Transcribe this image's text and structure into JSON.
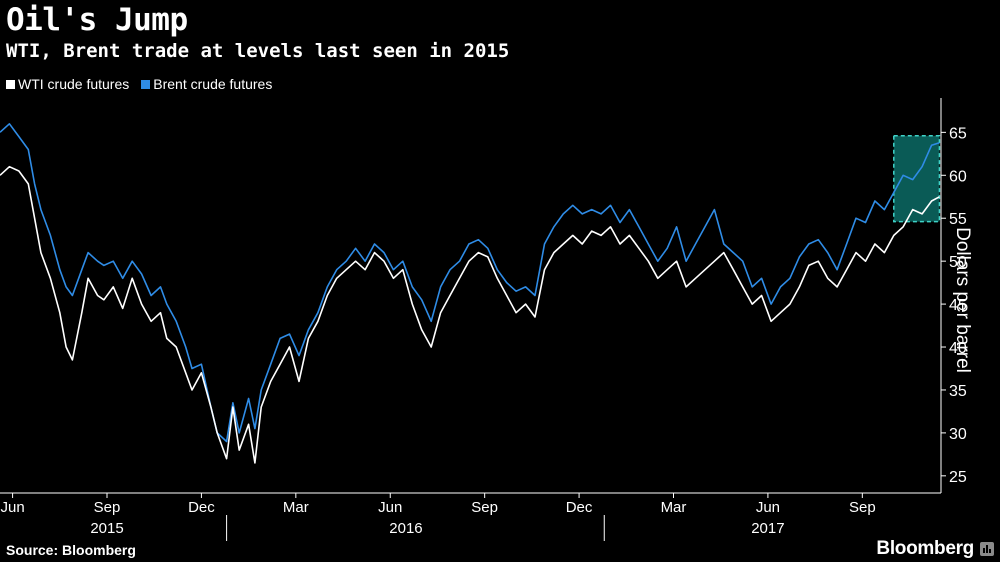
{
  "header": {
    "title": "Oil's Jump",
    "subtitle": "WTI, Brent trade at levels last seen in 2015"
  },
  "legend": [
    {
      "label": "WTI crude futures",
      "color": "#ffffff"
    },
    {
      "label": "Brent crude futures",
      "color": "#2f8ce6"
    }
  ],
  "footer": {
    "source": "Source: Bloomberg",
    "brand": "Bloomberg"
  },
  "colors": {
    "background": "#000000",
    "wti": "#ffffff",
    "brent": "#2f8ce6",
    "highlight_fill": "#0a5b56",
    "highlight_border": "#3fd3c8",
    "axis": "#ffffff"
  },
  "chart_data": {
    "type": "line",
    "title": "Oil's Jump",
    "subtitle": "WTI, Brent trade at levels last seen in 2015",
    "ylabel": "Dollars per barrel",
    "ylim": [
      23,
      69
    ],
    "yticks": [
      25,
      30,
      35,
      40,
      45,
      50,
      55,
      60,
      65
    ],
    "x_unit": "months since 2015-05-21 (approx.)",
    "xlim": [
      0,
      29.9
    ],
    "month_ticks": [
      {
        "label": "Jun",
        "x": 0.4
      },
      {
        "label": "Sep",
        "x": 3.4
      },
      {
        "label": "Dec",
        "x": 6.4
      },
      {
        "label": "Mar",
        "x": 9.4
      },
      {
        "label": "Jun",
        "x": 12.4
      },
      {
        "label": "Sep",
        "x": 15.4
      },
      {
        "label": "Dec",
        "x": 18.4
      },
      {
        "label": "Mar",
        "x": 21.4
      },
      {
        "label": "Jun",
        "x": 24.4
      },
      {
        "label": "Sep",
        "x": 27.4
      }
    ],
    "year_labels": [
      {
        "label": "2015",
        "x": 3.4
      },
      {
        "label": "2016",
        "x": 12.9
      },
      {
        "label": "2017",
        "x": 24.4
      }
    ],
    "year_dividers": [
      7.2,
      19.2
    ],
    "highlight": {
      "x": [
        28.4,
        29.85
      ],
      "y": [
        54.6,
        64.6
      ]
    },
    "series": [
      {
        "name": "WTI crude futures",
        "x": [
          0,
          0.3,
          0.6,
          0.9,
          1.1,
          1.3,
          1.6,
          1.9,
          2.1,
          2.3,
          2.6,
          2.8,
          3.1,
          3.3,
          3.6,
          3.9,
          4.2,
          4.5,
          4.8,
          5.1,
          5.3,
          5.6,
          5.9,
          6.1,
          6.4,
          6.7,
          6.9,
          7.2,
          7.4,
          7.6,
          7.9,
          8.1,
          8.3,
          8.6,
          8.9,
          9.2,
          9.5,
          9.8,
          10.1,
          10.4,
          10.7,
          11.0,
          11.3,
          11.6,
          11.9,
          12.2,
          12.5,
          12.8,
          13.1,
          13.4,
          13.7,
          14.0,
          14.3,
          14.6,
          14.9,
          15.2,
          15.5,
          15.8,
          16.1,
          16.4,
          16.7,
          17.0,
          17.3,
          17.6,
          17.9,
          18.2,
          18.5,
          18.8,
          19.1,
          19.4,
          19.7,
          20.0,
          20.3,
          20.6,
          20.9,
          21.2,
          21.5,
          21.8,
          22.1,
          22.4,
          22.7,
          23.0,
          23.3,
          23.6,
          23.9,
          24.2,
          24.5,
          24.8,
          25.1,
          25.4,
          25.7,
          26.0,
          26.3,
          26.6,
          26.9,
          27.2,
          27.5,
          27.8,
          28.1,
          28.4,
          28.7,
          29.0,
          29.3,
          29.6,
          29.85
        ],
        "values": [
          60,
          61,
          60.5,
          59,
          55,
          51,
          48,
          44,
          40,
          38.5,
          44,
          48,
          46,
          45.5,
          47,
          44.5,
          48,
          45,
          43,
          44,
          41,
          40,
          37,
          35,
          37,
          33,
          30,
          27,
          33,
          28,
          31,
          26.5,
          33,
          36,
          38,
          40,
          36,
          41,
          43,
          46,
          48,
          49,
          50,
          49,
          51,
          50,
          48,
          49,
          45,
          42,
          40,
          44,
          46,
          48,
          50,
          51,
          50.5,
          48,
          46,
          44,
          45,
          43.5,
          49,
          51,
          52,
          53,
          52,
          53.5,
          53,
          54,
          52,
          53,
          51.5,
          50,
          48,
          49,
          50,
          47,
          48,
          49,
          50,
          51,
          49,
          47,
          45,
          46,
          43,
          44,
          45,
          47,
          49.5,
          50,
          48,
          47,
          49,
          51,
          50,
          52,
          51,
          53,
          54,
          56,
          55.5,
          57,
          57.5
        ]
      },
      {
        "name": "Brent crude futures",
        "x": [
          0,
          0.3,
          0.6,
          0.9,
          1.1,
          1.3,
          1.6,
          1.9,
          2.1,
          2.3,
          2.6,
          2.8,
          3.1,
          3.3,
          3.6,
          3.9,
          4.2,
          4.5,
          4.8,
          5.1,
          5.3,
          5.6,
          5.9,
          6.1,
          6.4,
          6.7,
          6.9,
          7.2,
          7.4,
          7.6,
          7.9,
          8.1,
          8.3,
          8.6,
          8.9,
          9.2,
          9.5,
          9.8,
          10.1,
          10.4,
          10.7,
          11.0,
          11.3,
          11.6,
          11.9,
          12.2,
          12.5,
          12.8,
          13.1,
          13.4,
          13.7,
          14.0,
          14.3,
          14.6,
          14.9,
          15.2,
          15.5,
          15.8,
          16.1,
          16.4,
          16.7,
          17.0,
          17.3,
          17.6,
          17.9,
          18.2,
          18.5,
          18.8,
          19.1,
          19.4,
          19.7,
          20.0,
          20.3,
          20.6,
          20.9,
          21.2,
          21.5,
          21.8,
          22.1,
          22.4,
          22.7,
          23.0,
          23.3,
          23.6,
          23.9,
          24.2,
          24.5,
          24.8,
          25.1,
          25.4,
          25.7,
          26.0,
          26.3,
          26.6,
          26.9,
          27.2,
          27.5,
          27.8,
          28.1,
          28.4,
          28.7,
          29.0,
          29.3,
          29.6,
          29.85
        ],
        "values": [
          65,
          66,
          64.5,
          63,
          59,
          56,
          53,
          49,
          47,
          46,
          49,
          51,
          50,
          49.5,
          50,
          48,
          50,
          48.5,
          46,
          47,
          45,
          43,
          40,
          37.5,
          38,
          33,
          30,
          29,
          33.5,
          30,
          34,
          30.5,
          35,
          38,
          41,
          41.5,
          39,
          42,
          44,
          47,
          49,
          50,
          51.5,
          50,
          52,
          51,
          49,
          50,
          47,
          45.5,
          43,
          47,
          49,
          50,
          52,
          52.5,
          51.5,
          49,
          47.5,
          46.5,
          47,
          46,
          52,
          54,
          55.5,
          56.5,
          55.5,
          56,
          55.5,
          56.5,
          54.5,
          56,
          54,
          52,
          50,
          51.5,
          54,
          50,
          52,
          54,
          56,
          52,
          51,
          50,
          47,
          48,
          45,
          47,
          48,
          50.5,
          52,
          52.5,
          51,
          49,
          52,
          55,
          54.5,
          57,
          56,
          58,
          60,
          59.5,
          61,
          63.5,
          63.8
        ]
      }
    ]
  }
}
